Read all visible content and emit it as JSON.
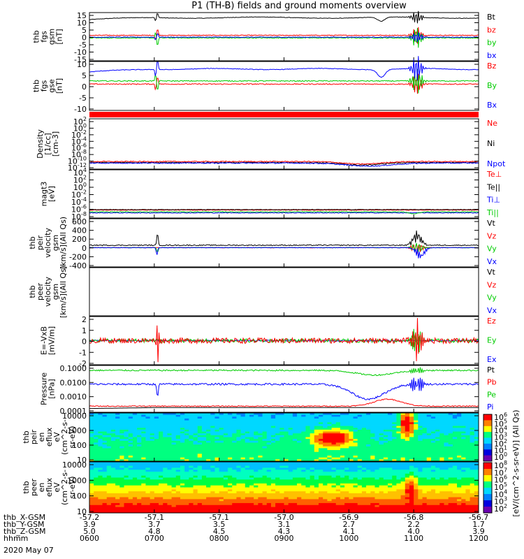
{
  "chart_data": {
    "title": "P1 (TH-B) fields and ground moments overview",
    "type": "line",
    "x_ticks": [
      "0600",
      "0700",
      "0800",
      "0900",
      "1000",
      "1100",
      "1200"
    ],
    "footer": {
      "rows": [
        {
          "label": "thb_X-GSM",
          "values": [
            "-57.2",
            "-57.1",
            "-57.1",
            "-57.0",
            "-56.9",
            "-56.8",
            "-56.7"
          ]
        },
        {
          "label": "thb_Y-GSM",
          "values": [
            "3.9",
            "3.7",
            "3.5",
            "3.1",
            "2.7",
            "2.2",
            "1.7"
          ]
        },
        {
          "label": "thb_Z-GSM",
          "values": [
            "5.0",
            "4.8",
            "4.5",
            "4.3",
            "4.1",
            "4.0",
            "3.9"
          ]
        },
        {
          "label": "hhmm",
          "values": [
            "0600",
            "0700",
            "0800",
            "0900",
            "1000",
            "1100",
            "1200"
          ]
        }
      ],
      "date": "2020 May 07"
    },
    "colorbar_label": "[eV/(cm^2-s-sr-eV)] (All Qs)",
    "panels": [
      {
        "id": "fgs-gsm",
        "ylabel": [
          "thb",
          "fgs",
          "gsm",
          "[nT]"
        ],
        "ylim": [
          -15,
          15
        ],
        "ticks": [
          "15",
          "10",
          "5",
          "0",
          "-5",
          "-10",
          "-15"
        ],
        "legend": [
          {
            "label": "Bt",
            "color": "#000000"
          },
          {
            "label": "bz",
            "color": "#ff0000"
          },
          {
            "label": "by",
            "color": "#00cc00"
          },
          {
            "label": "bx",
            "color": "#0000ff"
          }
        ]
      },
      {
        "id": "fgs-gse",
        "ylabel": [
          "thb",
          "fgs",
          "gse",
          "[nT]"
        ],
        "ylim": [
          -15,
          10
        ],
        "ticks": [
          "10",
          "5",
          "0",
          "-5",
          "-10"
        ],
        "legend": [
          {
            "label": "Bz",
            "color": "#ff0000"
          },
          {
            "label": "By",
            "color": "#00cc00"
          },
          {
            "label": "Bx",
            "color": "#0000ff"
          }
        ]
      },
      {
        "id": "density",
        "ylabel": [
          "Density",
          "[1/cc]",
          "[cm-3]"
        ],
        "ticks": [
          "10^2",
          "10^0",
          "10^-2",
          "10^-4",
          "10^-6",
          "10^-8",
          "10^-10",
          "10^-12"
        ],
        "legend": [
          {
            "label": "Ne",
            "color": "#ff0000"
          },
          {
            "label": "Ni",
            "color": "#000000"
          },
          {
            "label": "Npot",
            "color": "#0000ff"
          }
        ]
      },
      {
        "id": "temperature",
        "ylabel": [
          "magt3",
          "[eV]"
        ],
        "ticks": [
          "10^4",
          "10^2",
          "10^0",
          "10^-2",
          "10^-4",
          "10^-6",
          "10^-8"
        ],
        "legend": [
          {
            "label": "Te⊥",
            "color": "#ff0000"
          },
          {
            "label": "Te||",
            "color": "#000000"
          },
          {
            "label": "Ti⊥",
            "color": "#0000ff"
          },
          {
            "label": "Ti||",
            "color": "#00cc00"
          }
        ]
      },
      {
        "id": "peir-velocity",
        "ylabel": [
          "thb",
          "peir",
          "velocity",
          "gsm",
          "[km/s](All Qs)"
        ],
        "ylim": [
          -400,
          600
        ],
        "ticks": [
          "600",
          "400",
          "200",
          "0",
          "-200",
          "-400"
        ],
        "legend": [
          {
            "label": "Vt",
            "color": "#000000"
          },
          {
            "label": "Vz",
            "color": "#ff0000"
          },
          {
            "label": "Vy",
            "color": "#00cc00"
          },
          {
            "label": "Vx",
            "color": "#0000ff"
          }
        ]
      },
      {
        "id": "peer-velocity",
        "ylabel": [
          "thb",
          "peer",
          "velocity",
          "gsm",
          "[km/s](All Qs)"
        ],
        "ticks": [],
        "legend": [
          {
            "label": "Vt",
            "color": "#000000"
          },
          {
            "label": "Vz",
            "color": "#ff0000"
          },
          {
            "label": "Vy",
            "color": "#00cc00"
          },
          {
            "label": "Vx",
            "color": "#0000ff"
          }
        ]
      },
      {
        "id": "efield",
        "ylabel": [
          "E=-VxB",
          "[mV/m]"
        ],
        "ylim": [
          -2,
          2
        ],
        "ticks": [
          "2",
          "1",
          "0",
          "-1",
          "-2"
        ],
        "legend": [
          {
            "label": "Ez",
            "color": "#ff0000"
          },
          {
            "label": "Ey",
            "color": "#00cc00"
          },
          {
            "label": "Ex",
            "color": "#0000ff"
          }
        ]
      },
      {
        "id": "pressure",
        "ylabel": [
          "Pressure",
          "[nPa]"
        ],
        "ticks": [
          "0.1000",
          "0.0100",
          "0.0010",
          "0.0001"
        ],
        "legend": [
          {
            "label": "Pt",
            "color": "#000000"
          },
          {
            "label": "Pb",
            "color": "#ff0000"
          },
          {
            "label": "Pe",
            "color": "#00cc00"
          },
          {
            "label": "Pi",
            "color": "#0000ff"
          }
        ]
      },
      {
        "id": "peir-spectrogram",
        "type": "heatmap",
        "ylabel": [
          "thb",
          "peir",
          "en",
          "eflux",
          "eV",
          "(cm^2-s-",
          "sr-eV)"
        ],
        "ticks": [
          "10000",
          "1000",
          "100",
          "10"
        ],
        "colorbar_ticks": [
          "10^6",
          "10^5",
          "10^4",
          "10^3",
          "10^2",
          "10^1",
          "10^0"
        ]
      },
      {
        "id": "peer-spectrogram",
        "type": "heatmap",
        "ylabel": [
          "thb",
          "peer",
          "en",
          "eflux",
          "eV",
          "(cm^2-s-",
          "sr-eV)"
        ],
        "ticks": [
          "10000",
          "1000",
          "100",
          "10"
        ],
        "colorbar_ticks": [
          "10^8",
          "10^7",
          "10^6",
          "10^5",
          "10^4",
          "10^3",
          "10^2"
        ]
      }
    ]
  }
}
